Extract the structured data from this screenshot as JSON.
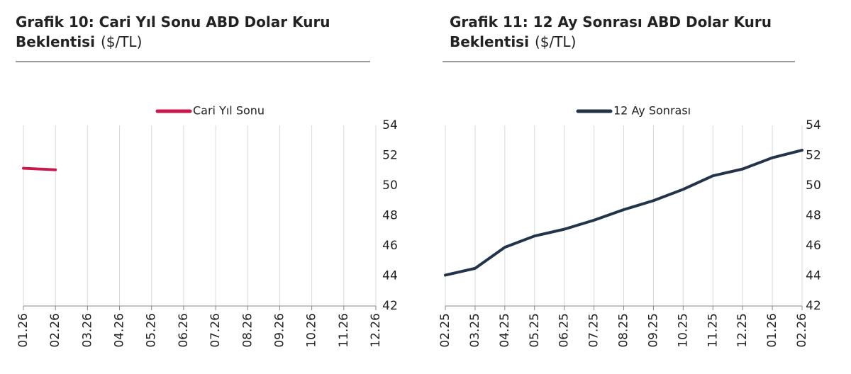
{
  "chart_data": [
    {
      "type": "line",
      "title": "Grafik 10: Cari Yıl Sonu ABD Dolar Kuru Beklentisi",
      "unit": "($/TL)",
      "categories": [
        "01.26",
        "02.26",
        "03.26",
        "04.26",
        "05.26",
        "06.26",
        "07.26",
        "08.26",
        "09.26",
        "10.26",
        "11.26",
        "12.26"
      ],
      "series": [
        {
          "name": "Cari Yıl Sonu",
          "color": "#c8174a",
          "values": [
            51.15,
            51.05,
            null,
            null,
            null,
            null,
            null,
            null,
            null,
            null,
            null,
            null
          ]
        }
      ],
      "ylim": [
        42,
        54
      ],
      "yticks": [
        42,
        44,
        46,
        48,
        50,
        52,
        54
      ],
      "grid": true,
      "legend": "top"
    },
    {
      "type": "line",
      "title": "Grafik 11: 12 Ay Sonrası ABD Dolar Kuru Beklentisi",
      "unit": "($/TL)",
      "categories": [
        "02.25",
        "03.25",
        "04.25",
        "05.25",
        "06.25",
        "07.25",
        "08.25",
        "09.25",
        "10.25",
        "11.25",
        "12.25",
        "01.26",
        "02.26"
      ],
      "series": [
        {
          "name": "12 Ay Sonrası",
          "color": "#22334a",
          "values": [
            44.05,
            44.5,
            45.9,
            46.65,
            47.1,
            47.7,
            48.4,
            49.0,
            49.75,
            50.65,
            51.1,
            51.85,
            52.35
          ]
        }
      ],
      "ylim": [
        42,
        54
      ],
      "yticks": [
        42,
        44,
        46,
        48,
        50,
        52,
        54
      ],
      "grid": true,
      "legend": "top"
    }
  ]
}
